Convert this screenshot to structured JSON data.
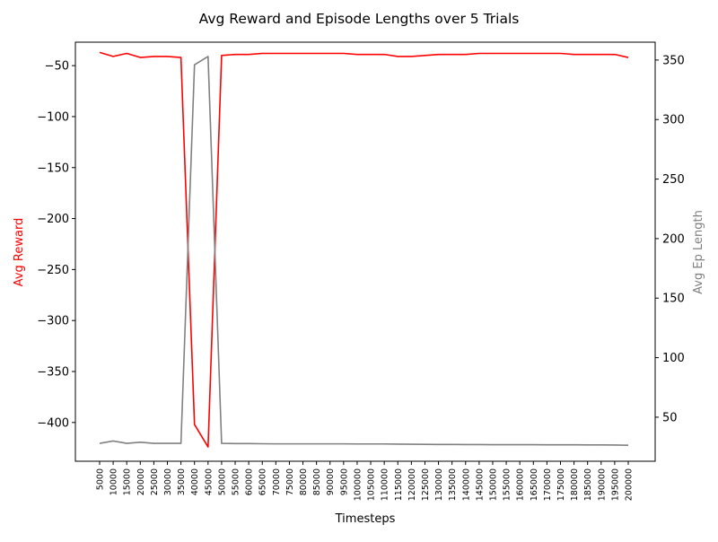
{
  "chart_data": {
    "type": "line",
    "title": "Avg Reward and Episode Lengths over 5 Trials",
    "xlabel": "Timesteps",
    "ylabel_left": "Avg Reward",
    "ylabel_right": "Avg Ep Length",
    "ylim_left": [
      -438,
      -27
    ],
    "ylim_right": [
      13,
      365
    ],
    "yticks_left": [
      -50,
      -100,
      -150,
      -200,
      -250,
      -300,
      -350,
      -400
    ],
    "yticks_right": [
      50,
      100,
      150,
      200,
      250,
      300,
      350
    ],
    "grid": false,
    "x": [
      5000,
      10000,
      15000,
      20000,
      25000,
      30000,
      35000,
      40000,
      45000,
      50000,
      55000,
      60000,
      65000,
      70000,
      75000,
      80000,
      85000,
      90000,
      95000,
      100000,
      105000,
      110000,
      115000,
      120000,
      125000,
      130000,
      135000,
      140000,
      145000,
      150000,
      155000,
      160000,
      165000,
      170000,
      175000,
      180000,
      185000,
      190000,
      195000,
      200000
    ],
    "series": [
      {
        "name": "",
        "axis": "left",
        "color": "#ff0000",
        "values": [
          -37,
          -41,
          -38,
          -42,
          -41,
          -41,
          -42,
          -402,
          -424,
          -40,
          -39,
          -39,
          -38,
          -38,
          -38,
          -38,
          -38,
          -38,
          -38,
          -39,
          -39,
          -39,
          -41,
          -41,
          -40,
          -39,
          -39,
          -39,
          -38,
          -38,
          -38,
          -38,
          -38,
          -38,
          -38,
          -39,
          -39,
          -39,
          -39,
          -42
        ]
      },
      {
        "name": "",
        "axis": "right",
        "color": "#808080",
        "values": [
          28,
          30,
          28,
          29,
          28,
          28,
          28,
          346,
          353,
          28,
          27.8,
          27.8,
          27.7,
          27.6,
          27.6,
          27.6,
          27.6,
          27.6,
          27.6,
          27.5,
          27.5,
          27.5,
          27.4,
          27.3,
          27.2,
          27.1,
          27.1,
          27.0,
          27.0,
          26.9,
          26.9,
          26.9,
          26.9,
          26.8,
          26.8,
          26.8,
          26.7,
          26.7,
          26.6,
          26.4
        ]
      }
    ]
  },
  "colors": {
    "left_axis_label": "#ff0000",
    "right_axis_label": "#808080"
  }
}
